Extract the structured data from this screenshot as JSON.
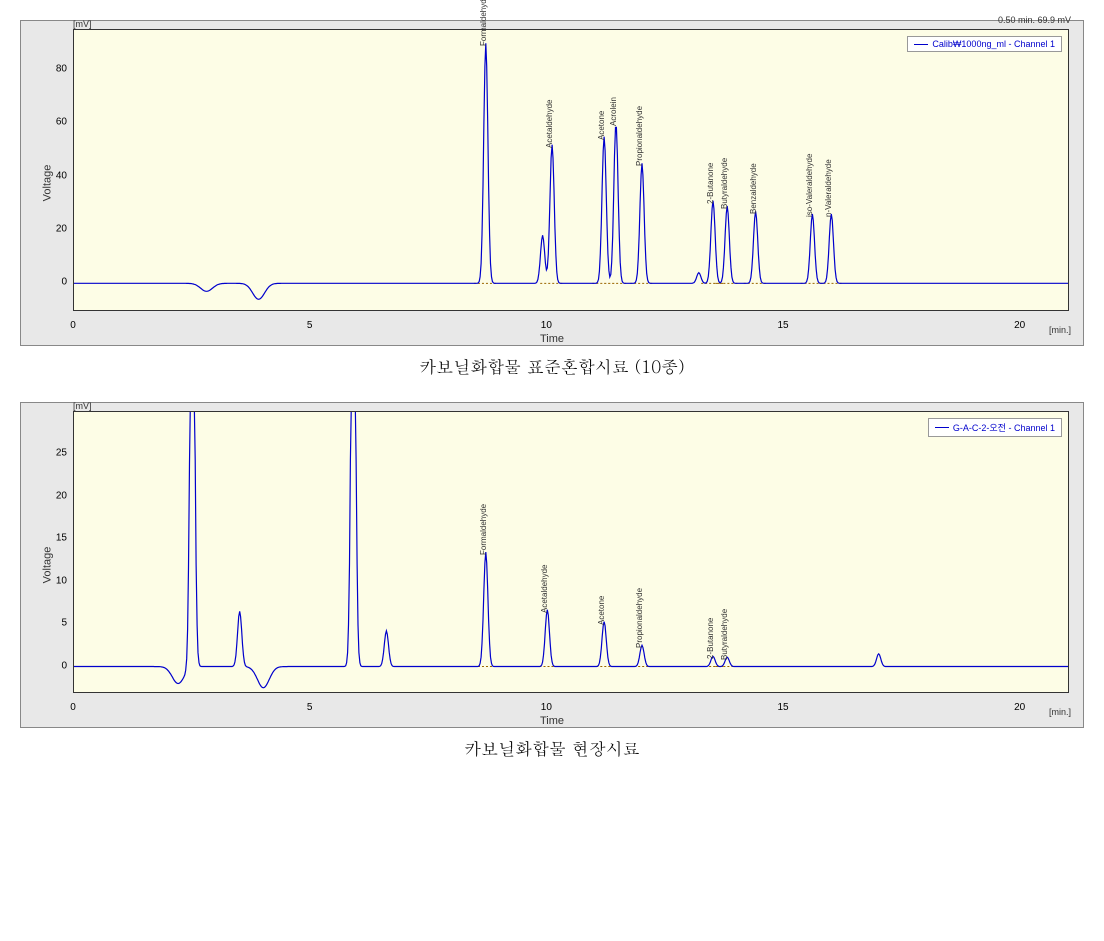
{
  "chart1": {
    "type": "chromatogram",
    "legend_label": "Calib₩1000ng_ml - Channel 1",
    "cursor_text": "0.50 min.  69.9 mV",
    "y_unit": "[mV]",
    "x_unit": "[min.]",
    "y_axis_label": "Voltage",
    "x_axis_label": "Time",
    "caption": "카보닐화합물 표준혼합시료 (10종)",
    "background_color": "#fdfde6",
    "frame_color": "#e8e8e8",
    "line_color": "#0000cc",
    "xlim": [
      0,
      21
    ],
    "ylim": [
      -10,
      95
    ],
    "xtick_step": 5,
    "yticks": [
      0,
      20,
      40,
      60,
      80
    ],
    "peaks": [
      {
        "rt": 8.7,
        "height": 90,
        "label": "Formaldehyde"
      },
      {
        "rt": 9.9,
        "height": 18,
        "label": ""
      },
      {
        "rt": 10.1,
        "height": 52,
        "label": "Acetaldehyde"
      },
      {
        "rt": 11.2,
        "height": 55,
        "label": "Acetone"
      },
      {
        "rt": 11.45,
        "height": 60,
        "label": "Acrolein"
      },
      {
        "rt": 12.0,
        "height": 45,
        "label": "Propionaldehyde"
      },
      {
        "rt": 13.2,
        "height": 4,
        "label": ""
      },
      {
        "rt": 13.5,
        "height": 31,
        "label": "2-Butanone"
      },
      {
        "rt": 13.8,
        "height": 29,
        "label": "Butyraldehyde"
      },
      {
        "rt": 14.4,
        "height": 27,
        "label": "Benzaldehyde"
      },
      {
        "rt": 15.6,
        "height": 26,
        "label": "iso-Valeraldehyde"
      },
      {
        "rt": 16.0,
        "height": 26,
        "label": "n-Valeraldehyde"
      }
    ],
    "baseline_dips": [
      {
        "rt": 2.8,
        "height": -3
      },
      {
        "rt": 3.9,
        "height": -6
      }
    ]
  },
  "chart2": {
    "type": "chromatogram",
    "legend_label": "G-A-C-2-오전 - Channel 1",
    "y_unit": "[mV]",
    "x_unit": "[min.]",
    "y_axis_label": "Voltage",
    "x_axis_label": "Time",
    "caption": "카보닐화합물 현장시료",
    "background_color": "#fdfde6",
    "frame_color": "#e8e8e8",
    "line_color": "#0000cc",
    "xlim": [
      0,
      21
    ],
    "ylim": [
      -3,
      30
    ],
    "xtick_step": 5,
    "yticks": [
      0,
      5,
      10,
      15,
      20,
      25
    ],
    "peaks": [
      {
        "rt": 2.5,
        "height": 60,
        "label": ""
      },
      {
        "rt": 3.5,
        "height": 6.5,
        "label": ""
      },
      {
        "rt": 5.9,
        "height": 60,
        "label": ""
      },
      {
        "rt": 6.6,
        "height": 4.2,
        "label": ""
      },
      {
        "rt": 8.7,
        "height": 13.5,
        "label": "Formaldehyde"
      },
      {
        "rt": 10.0,
        "height": 6.7,
        "label": "Acetaldehyde"
      },
      {
        "rt": 11.2,
        "height": 5.3,
        "label": "Acetone"
      },
      {
        "rt": 12.0,
        "height": 2.5,
        "label": "Propionaldehyde"
      },
      {
        "rt": 13.5,
        "height": 1.2,
        "label": "2-Butanone"
      },
      {
        "rt": 13.8,
        "height": 1.1,
        "label": "Butyraldehyde"
      },
      {
        "rt": 17.0,
        "height": 1.5,
        "label": ""
      }
    ],
    "baseline_dips": [
      {
        "rt": 2.2,
        "height": -2
      },
      {
        "rt": 4.0,
        "height": -2.5
      }
    ]
  }
}
